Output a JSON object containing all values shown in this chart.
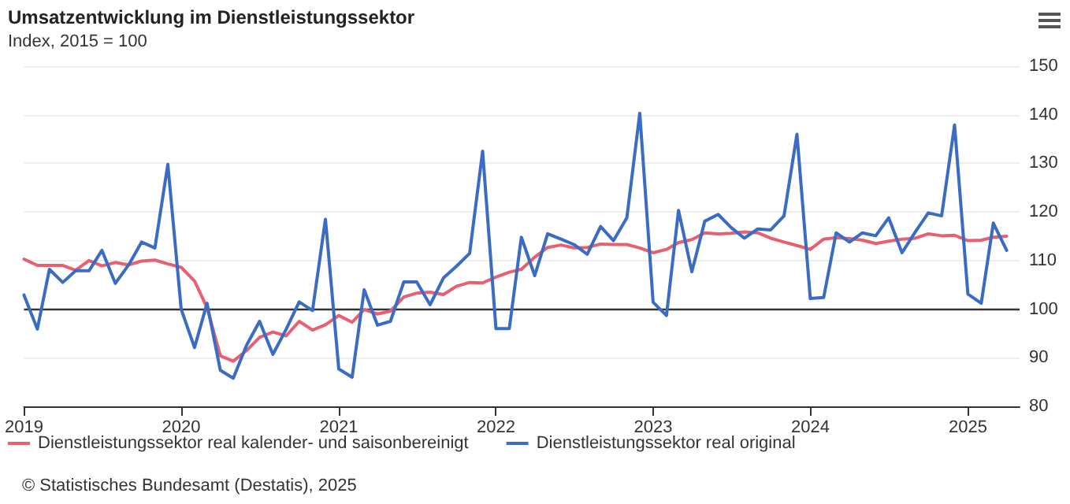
{
  "chart_data": {
    "type": "line",
    "title": "Umsatzentwicklung im Dienstleistungssektor",
    "subtitle": "Index, 2015 = 100",
    "annotations": [
      "© Statistisches Bundesamt (Destatis), 2025"
    ],
    "x": [
      "2019-01",
      "2019-02",
      "2019-03",
      "2019-04",
      "2019-05",
      "2019-06",
      "2019-07",
      "2019-08",
      "2019-09",
      "2019-10",
      "2019-11",
      "2019-12",
      "2020-01",
      "2020-02",
      "2020-03",
      "2020-04",
      "2020-05",
      "2020-06",
      "2020-07",
      "2020-08",
      "2020-09",
      "2020-10",
      "2020-11",
      "2020-12",
      "2021-01",
      "2021-02",
      "2021-03",
      "2021-04",
      "2021-05",
      "2021-06",
      "2021-07",
      "2021-08",
      "2021-09",
      "2021-10",
      "2021-11",
      "2021-12",
      "2022-01",
      "2022-02",
      "2022-03",
      "2022-04",
      "2022-05",
      "2022-06",
      "2022-07",
      "2022-08",
      "2022-09",
      "2022-10",
      "2022-11",
      "2022-12",
      "2023-01",
      "2023-02",
      "2023-03",
      "2023-04",
      "2023-05",
      "2023-06",
      "2023-07",
      "2023-08",
      "2023-09",
      "2023-10",
      "2023-11",
      "2023-12",
      "2024-01",
      "2024-02",
      "2024-03",
      "2024-04",
      "2024-05",
      "2024-06",
      "2024-07",
      "2024-08",
      "2024-09",
      "2024-10",
      "2024-11",
      "2024-12",
      "2025-01",
      "2025-02",
      "2025-03",
      "2025-04"
    ],
    "series": [
      {
        "name": "Dienstleistungssektor real kalender- und saisonbereinigt",
        "color": "#e8606f",
        "values": [
          110.3,
          109,
          109,
          109,
          108,
          110,
          108.9,
          109.6,
          109.1,
          109.9,
          110.1,
          109.3,
          108.6,
          105.8,
          100.3,
          90.4,
          89.3,
          91.5,
          94.2,
          95.3,
          94.5,
          97.5,
          95.7,
          96.8,
          98.7,
          97.3,
          99.9,
          99,
          99.6,
          102.5,
          103.3,
          103.5,
          103,
          104.7,
          105.5,
          105.4,
          106.6,
          107.6,
          108.2,
          110.7,
          112.7,
          113.2,
          112.6,
          112.7,
          113.4,
          113.3,
          113.3,
          112.6,
          111.6,
          112.3,
          113.7,
          114.3,
          115.7,
          115.5,
          115.6,
          115.9,
          115.7,
          114.6,
          113.8,
          113.1,
          112.3,
          114.4,
          114.7,
          114.5,
          114.2,
          113.5,
          114,
          114.4,
          114.6,
          115.5,
          115.1,
          115.2,
          114.1,
          114.2,
          114.8,
          115
        ]
      },
      {
        "name": "Dienstleistungssektor real original",
        "color": "#3a6cc4",
        "values": [
          102.9,
          95.9,
          108.2,
          105.5,
          107.9,
          107.9,
          112.1,
          105.3,
          109.1,
          113.8,
          112.6,
          129.8,
          100,
          92.1,
          101.2,
          87.4,
          85.8,
          92.6,
          97.5,
          90.7,
          95.9,
          101.5,
          99.7,
          118.5,
          87.7,
          86,
          104,
          96.7,
          97.5,
          105.6,
          105.6,
          100.9,
          106.4,
          108.8,
          111.5,
          132.5,
          96,
          96,
          114.8,
          106.9,
          115.5,
          114.4,
          113.3,
          111.3,
          117,
          114.1,
          118.8,
          140.3,
          101.4,
          98.7,
          120.3,
          107.7,
          118.1,
          119.5,
          116.8,
          114.6,
          116.5,
          116.3,
          119.2,
          136,
          102.2,
          102.4,
          115.7,
          113.8,
          115.7,
          115.1,
          118.8,
          111.6,
          115.9,
          119.8,
          119.2,
          137.9,
          103.1,
          101.2,
          117.7,
          112.1
        ]
      }
    ],
    "xlim": [
      "2019-01",
      "2025-05"
    ],
    "xticks": [
      {
        "value": "2019-01",
        "label": "2019"
      },
      {
        "value": "2020-01",
        "label": "2020"
      },
      {
        "value": "2021-01",
        "label": "2021"
      },
      {
        "value": "2022-01",
        "label": "2022"
      },
      {
        "value": "2023-01",
        "label": "2023"
      },
      {
        "value": "2024-01",
        "label": "2024"
      },
      {
        "value": "2025-01",
        "label": "2025"
      }
    ],
    "ylim": [
      80,
      150
    ],
    "yticks": [
      80,
      90,
      100,
      110,
      120,
      130,
      140,
      150
    ],
    "ref_lines": [
      {
        "axis": "y",
        "value": 100,
        "color": "#333333"
      }
    ],
    "grid": "y",
    "legend": "bottom",
    "marker": "none",
    "line_style": "solid"
  }
}
